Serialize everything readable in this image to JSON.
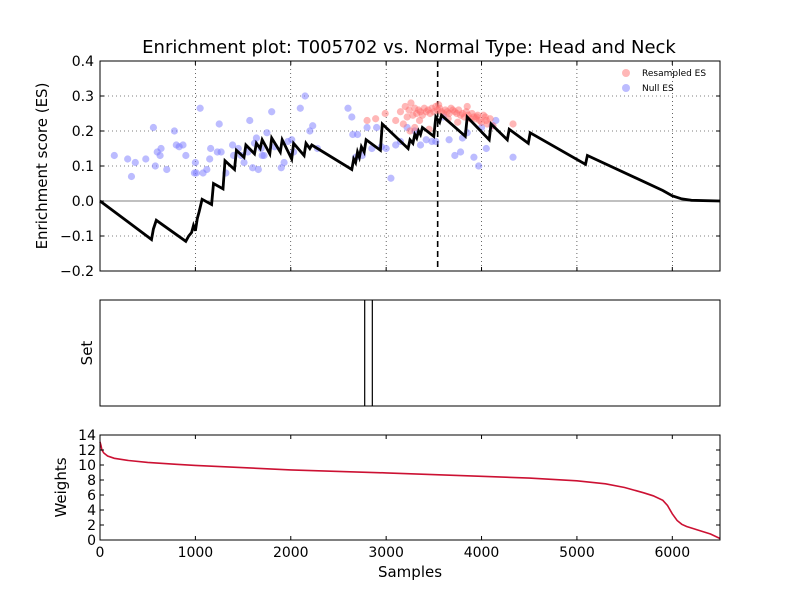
{
  "chart_data": [
    {
      "type": "scatter",
      "title": "Enrichment plot: T005702 vs. Normal Type: Head and Neck",
      "xlabel": "",
      "ylabel": "Enrichment score (ES)",
      "xlim": [
        0,
        6500
      ],
      "ylim": [
        -0.2,
        0.4
      ],
      "x_ticks": [
        0,
        1000,
        2000,
        3000,
        4000,
        5000,
        6000
      ],
      "y_ticks": [
        -0.2,
        -0.1,
        0.0,
        0.1,
        0.2,
        0.3,
        0.4
      ],
      "y_tick_labels": [
        "−0.2",
        "−0.1",
        "0.0",
        "0.1",
        "0.2",
        "0.3",
        "0.4"
      ],
      "grid": true,
      "legend_position": "top-right",
      "zero_line": 0,
      "peak_marker_x": 3540,
      "running_es": {
        "color": "#000000",
        "x": [
          0,
          540,
          560,
          590,
          900,
          930,
          960,
          980,
          1000,
          1020,
          1040,
          1070,
          1170,
          1190,
          1290,
          1310,
          1410,
          1430,
          1510,
          1530,
          1620,
          1640,
          1680,
          1700,
          1780,
          1800,
          1890,
          1910,
          2010,
          2030,
          2140,
          2160,
          2200,
          2220,
          2640,
          2660,
          2680,
          2700,
          2720,
          2740,
          2770,
          2790,
          2940,
          2960,
          3230,
          3250,
          3280,
          3300,
          3320,
          3340,
          3360,
          3380,
          3500,
          3520,
          3560,
          3580,
          3830,
          3850,
          4080,
          4100,
          4270,
          4290,
          4490,
          4510,
          5090,
          5110,
          5900,
          6000,
          6100,
          6200,
          6500
        ],
        "y": [
          0.0,
          -0.11,
          -0.08,
          -0.055,
          -0.115,
          -0.1,
          -0.09,
          -0.07,
          -0.085,
          -0.05,
          -0.03,
          0.005,
          -0.01,
          0.05,
          0.035,
          0.115,
          0.09,
          0.145,
          0.125,
          0.16,
          0.135,
          0.165,
          0.15,
          0.175,
          0.135,
          0.18,
          0.14,
          0.175,
          0.12,
          0.165,
          0.13,
          0.165,
          0.15,
          0.16,
          0.09,
          0.12,
          0.11,
          0.14,
          0.125,
          0.155,
          0.14,
          0.175,
          0.145,
          0.22,
          0.15,
          0.175,
          0.165,
          0.19,
          0.18,
          0.2,
          0.19,
          0.21,
          0.185,
          0.24,
          0.225,
          0.245,
          0.185,
          0.24,
          0.175,
          0.22,
          0.175,
          0.205,
          0.165,
          0.195,
          0.105,
          0.13,
          0.03,
          0.015,
          0.006,
          0.002,
          0.0
        ]
      },
      "series": [
        {
          "name": "Resampled ES",
          "color": "#ff7070",
          "x": [
            2800,
            2890,
            2990,
            3100,
            3150,
            3180,
            3200,
            3220,
            3240,
            3260,
            3280,
            3300,
            3320,
            3340,
            3360,
            3380,
            3400,
            3420,
            3440,
            3460,
            3480,
            3500,
            3520,
            3540,
            3560,
            3580,
            3600,
            3620,
            3640,
            3660,
            3680,
            3700,
            3720,
            3740,
            3760,
            3780,
            3800,
            3820,
            3840,
            3860,
            3880,
            3900,
            3920,
            3940,
            3960,
            3980,
            4000,
            4020,
            4040,
            4060,
            4090,
            4120,
            4330,
            3250,
            3300,
            3350,
            3450,
            3550,
            3650,
            3750,
            3850,
            3950,
            4050
          ],
          "y": [
            0.23,
            0.235,
            0.25,
            0.23,
            0.255,
            0.22,
            0.27,
            0.24,
            0.26,
            0.28,
            0.245,
            0.265,
            0.25,
            0.26,
            0.255,
            0.245,
            0.265,
            0.255,
            0.26,
            0.25,
            0.265,
            0.255,
            0.27,
            0.26,
            0.265,
            0.255,
            0.25,
            0.26,
            0.255,
            0.25,
            0.265,
            0.26,
            0.255,
            0.25,
            0.26,
            0.245,
            0.25,
            0.24,
            0.255,
            0.245,
            0.235,
            0.25,
            0.24,
            0.235,
            0.245,
            0.23,
            0.225,
            0.245,
            0.24,
            0.22,
            0.235,
            0.215,
            0.22,
            0.2,
            0.21,
            0.23,
            0.205,
            0.275,
            0.235,
            0.225,
            0.27,
            0.24,
            0.23
          ]
        },
        {
          "name": "Null ES",
          "color": "#7a7aff",
          "x": [
            150,
            290,
            330,
            370,
            480,
            560,
            580,
            600,
            630,
            640,
            700,
            780,
            800,
            830,
            870,
            900,
            990,
            1000,
            1010,
            1050,
            1080,
            1120,
            1150,
            1160,
            1230,
            1250,
            1270,
            1320,
            1390,
            1400,
            1450,
            1480,
            1510,
            1550,
            1570,
            1600,
            1620,
            1640,
            1660,
            1690,
            1700,
            1720,
            1750,
            1800,
            1830,
            1900,
            1930,
            1970,
            2010,
            2030,
            2100,
            2150,
            2200,
            2230,
            2280,
            2600,
            2640,
            2650,
            2680,
            2700,
            2750,
            2800,
            2850,
            2900,
            2950,
            3000,
            3050,
            3100,
            3150,
            3220,
            3300,
            3360,
            3420,
            3480,
            3520,
            3600,
            3660,
            3720,
            3780,
            3800,
            3850,
            3920,
            3970,
            4000,
            4050,
            4110,
            4150,
            4330
          ],
          "y": [
            0.13,
            0.12,
            0.07,
            0.11,
            0.12,
            0.21,
            0.1,
            0.14,
            0.13,
            0.15,
            0.09,
            0.2,
            0.16,
            0.155,
            0.16,
            0.13,
            0.08,
            0.11,
            0.08,
            0.265,
            0.08,
            0.09,
            0.12,
            0.15,
            0.14,
            0.22,
            0.14,
            0.08,
            0.16,
            0.13,
            0.15,
            0.13,
            0.11,
            0.14,
            0.23,
            0.095,
            0.165,
            0.18,
            0.09,
            0.15,
            0.13,
            0.13,
            0.195,
            0.255,
            0.155,
            0.095,
            0.11,
            0.17,
            0.175,
            0.14,
            0.265,
            0.3,
            0.2,
            0.215,
            0.15,
            0.265,
            0.24,
            0.19,
            0.125,
            0.19,
            0.13,
            0.21,
            0.15,
            0.21,
            0.155,
            0.15,
            0.065,
            0.16,
            0.17,
            0.21,
            0.2,
            0.16,
            0.175,
            0.17,
            0.17,
            0.24,
            0.175,
            0.13,
            0.14,
            0.18,
            0.195,
            0.125,
            0.1,
            0.21,
            0.15,
            0.215,
            0.23,
            0.125
          ]
        }
      ]
    },
    {
      "type": "line",
      "title": "",
      "xlabel": "",
      "ylabel": "Set",
      "xlim": [
        0,
        6500
      ],
      "x_ticks": [],
      "y_ticks": [],
      "set_members_x": [
        2775,
        2855
      ]
    },
    {
      "type": "line",
      "title": "",
      "xlabel": "Samples",
      "ylabel": "Weights",
      "xlim": [
        0,
        6500
      ],
      "ylim": [
        0,
        14
      ],
      "x_ticks": [
        0,
        1000,
        2000,
        3000,
        4000,
        5000,
        6000
      ],
      "y_ticks": [
        0,
        2,
        4,
        6,
        8,
        10,
        12,
        14
      ],
      "series": [
        {
          "color": "#cc1133",
          "x": [
            0,
            10,
            20,
            40,
            80,
            150,
            300,
            500,
            800,
            1000,
            2000,
            3000,
            4000,
            4500,
            5000,
            5300,
            5500,
            5700,
            5800,
            5900,
            5950,
            6000,
            6050,
            6100,
            6150,
            6200,
            6300,
            6400,
            6500
          ],
          "y": [
            13.1,
            12.6,
            12.0,
            11.6,
            11.2,
            10.9,
            10.6,
            10.35,
            10.1,
            9.95,
            9.35,
            8.95,
            8.5,
            8.25,
            7.9,
            7.5,
            7.0,
            6.3,
            5.9,
            5.3,
            4.6,
            3.5,
            2.6,
            2.1,
            1.8,
            1.6,
            1.2,
            0.8,
            0.2
          ]
        }
      ]
    }
  ]
}
